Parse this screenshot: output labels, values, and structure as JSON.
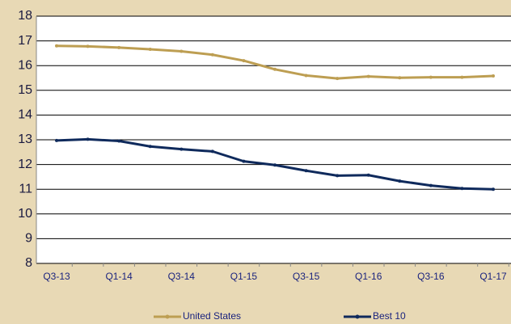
{
  "chart_data": {
    "type": "line",
    "categories": [
      "Q3-13",
      null,
      "Q1-14",
      null,
      "Q3-14",
      null,
      "Q1-15",
      null,
      "Q3-15",
      null,
      "Q1-16",
      null,
      "Q3-16",
      null,
      "Q1-17"
    ],
    "series": [
      {
        "name": "United States",
        "color": "#bd9e52",
        "values": [
          16.8,
          16.78,
          16.73,
          16.66,
          16.58,
          16.44,
          16.2,
          15.85,
          15.6,
          15.48,
          15.56,
          15.51,
          15.53,
          15.53,
          15.58
        ]
      },
      {
        "name": "Best 10",
        "color": "#0f2a5c",
        "values": [
          12.97,
          13.02,
          12.95,
          12.73,
          12.62,
          12.53,
          12.13,
          11.98,
          11.75,
          11.55,
          11.57,
          11.33,
          11.15,
          11.03,
          11.0
        ]
      }
    ],
    "ylim": [
      8,
      18
    ],
    "yticks": [
      8,
      9,
      10,
      11,
      12,
      13,
      14,
      15,
      16,
      17,
      18
    ],
    "grid": true,
    "legend": "bottom"
  }
}
